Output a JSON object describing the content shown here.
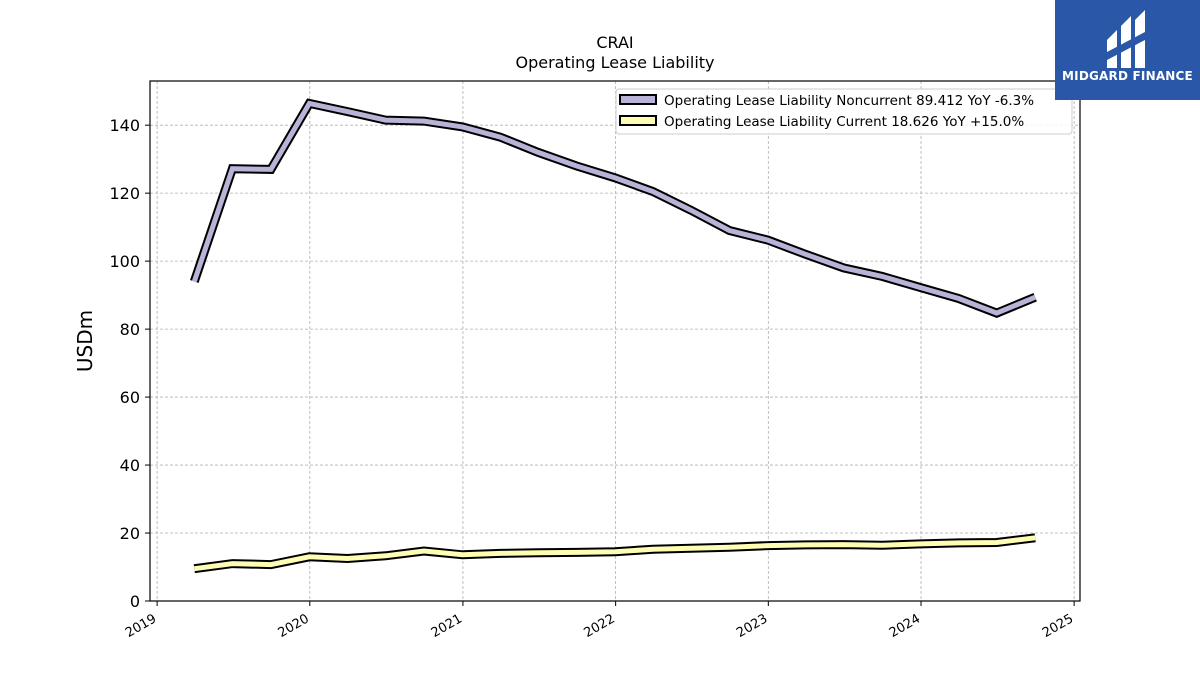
{
  "chart_data": {
    "type": "line",
    "title": "CRAI",
    "subtitle": "Operating Lease Liability",
    "ylabel": "USDm",
    "xlabel": "",
    "ylim": [
      0,
      153
    ],
    "xlim": [
      "2018-12-15",
      "2025-01-15"
    ],
    "yticks": [
      0,
      20,
      40,
      60,
      80,
      100,
      120,
      140
    ],
    "xticks": [
      "2019",
      "2020",
      "2021",
      "2022",
      "2023",
      "2024",
      "2025"
    ],
    "grid": true,
    "legend_position": "top-right",
    "x": [
      "2019-03-31",
      "2019-06-30",
      "2019-09-30",
      "2019-12-31",
      "2020-03-31",
      "2020-06-30",
      "2020-09-30",
      "2020-12-31",
      "2021-03-31",
      "2021-06-30",
      "2021-09-30",
      "2021-12-31",
      "2022-03-31",
      "2022-06-30",
      "2022-09-30",
      "2022-12-31",
      "2023-03-31",
      "2023-06-30",
      "2023-09-30",
      "2023-12-31",
      "2024-03-31",
      "2024-06-30",
      "2024-09-30"
    ],
    "series": [
      {
        "name": "Operating Lease Liability Noncurrent",
        "legend_label": "Operating Lease Liability Noncurrent  89.412 YoY -6.3%",
        "color": "#b8b4d8",
        "values": [
          94,
          127.2,
          127,
          146.4,
          144,
          141.5,
          141.2,
          139.5,
          136.5,
          132,
          128,
          124.5,
          120.5,
          115,
          109,
          106.2,
          102,
          98,
          95.5,
          92.2,
          89,
          84.7,
          89.4
        ]
      },
      {
        "name": "Operating Lease Liability Current",
        "legend_label": "Operating Lease Liability Current  18.626 YoY +15.0%",
        "color": "#fdfdb4",
        "values": [
          9.5,
          11,
          10.7,
          13,
          12.5,
          13.3,
          14.7,
          13.6,
          14,
          14.2,
          14.3,
          14.5,
          15.2,
          15.5,
          15.8,
          16.3,
          16.5,
          16.6,
          16.4,
          16.8,
          17.1,
          17.2,
          18.6
        ]
      }
    ]
  },
  "branding": {
    "name": "MIDGARD FINANCE",
    "icon": "midgard-logo-icon",
    "background": "#2b57a8"
  }
}
